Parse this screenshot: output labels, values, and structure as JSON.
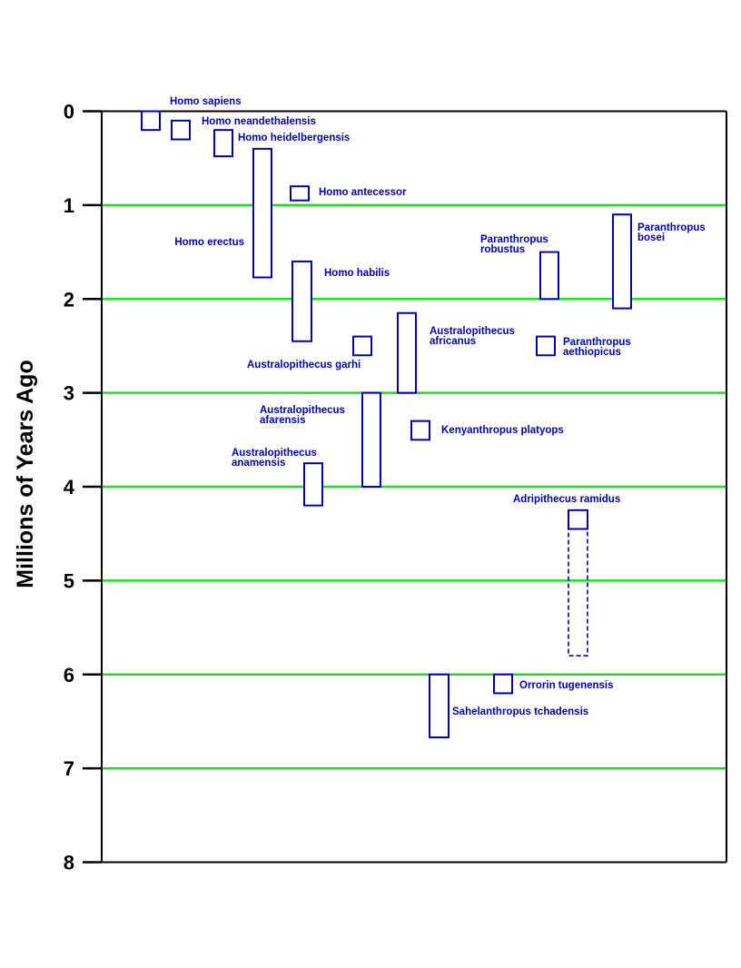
{
  "chart_data": {
    "type": "range",
    "ylabel": "Millions of Years Ago",
    "ylim": [
      0,
      8
    ],
    "y_inverted": true,
    "yticks": [
      0,
      1,
      2,
      3,
      4,
      5,
      6,
      7,
      8
    ],
    "gridlines": [
      1,
      2,
      3,
      4,
      5,
      6,
      7
    ],
    "grid": true,
    "colors": {
      "grid": "#22dd22",
      "range": "#0000bb",
      "label": "#0000bb",
      "axis": "#000000"
    },
    "series": [
      {
        "label": [
          "Homo sapiens"
        ],
        "start": 0,
        "end": 0.2,
        "col": 1,
        "dashed_end": null,
        "label_side": "above-right"
      },
      {
        "label": [
          "Homo neandethalensis"
        ],
        "start": 0.1,
        "end": 0.3,
        "col": 2,
        "dashed_end": null,
        "label_side": "right"
      },
      {
        "label": [
          "Homo heidelbergensis"
        ],
        "start": 0.2,
        "end": 0.48,
        "col": 3,
        "dashed_end": null,
        "label_side": "right"
      },
      {
        "label": [
          "Homo erectus"
        ],
        "start": 0.4,
        "end": 1.77,
        "col": 4,
        "dashed_end": null,
        "label_side": "left"
      },
      {
        "label": [
          "Homo antecessor"
        ],
        "start": 0.8,
        "end": 0.95,
        "col": 5,
        "dashed_end": null,
        "label_side": "right"
      },
      {
        "label": [
          "Homo habilis"
        ],
        "start": 1.6,
        "end": 2.45,
        "col": 6,
        "dashed_end": null,
        "label_side": "right"
      },
      {
        "label": [
          "Australopithecus garhi"
        ],
        "start": 2.4,
        "end": 2.6,
        "col": 7,
        "dashed_end": null,
        "label_side": "below-left"
      },
      {
        "label": [
          "Australopithecus",
          "afarensis"
        ],
        "start": 3.0,
        "end": 4.0,
        "col": 8,
        "dashed_end": null,
        "label_side": "left"
      },
      {
        "label": [
          "Australopithecus",
          "anamensis"
        ],
        "start": 3.75,
        "end": 4.2,
        "col": 9,
        "dashed_end": null,
        "label_side": "above-left"
      },
      {
        "label": [
          "Australopithecus",
          "africanus"
        ],
        "start": 2.15,
        "end": 3.0,
        "col": 10,
        "dashed_end": null,
        "label_side": "right"
      },
      {
        "label": [
          "Kenyanthropus platyops"
        ],
        "start": 3.3,
        "end": 3.5,
        "col": 11,
        "dashed_end": null,
        "label_side": "right"
      },
      {
        "label": [
          "Sahelanthropus tchadensis"
        ],
        "start": 6.0,
        "end": 6.67,
        "col": 12,
        "dashed_end": null,
        "label_side": "right"
      },
      {
        "label": [
          "Orrorin tugenensis"
        ],
        "start": 6.0,
        "end": 6.2,
        "col": 13,
        "dashed_end": null,
        "label_side": "right"
      },
      {
        "label": [
          "Paranthropus",
          "robustus"
        ],
        "start": 1.5,
        "end": 2.0,
        "col": 14,
        "dashed_end": null,
        "label_side": "above-left"
      },
      {
        "label": [
          "Paranthropus",
          "aethiopicus"
        ],
        "start": 2.4,
        "end": 2.6,
        "col": 15,
        "dashed_end": null,
        "label_side": "right"
      },
      {
        "label": [
          "Adripithecus ramidus"
        ],
        "start": 4.25,
        "end": 4.45,
        "col": 16,
        "dashed_end": 5.8,
        "label_side": "above"
      },
      {
        "label": [
          "Paranthropus",
          "bosei"
        ],
        "start": 1.1,
        "end": 2.1,
        "col": 17,
        "dashed_end": null,
        "label_side": "right"
      }
    ]
  }
}
